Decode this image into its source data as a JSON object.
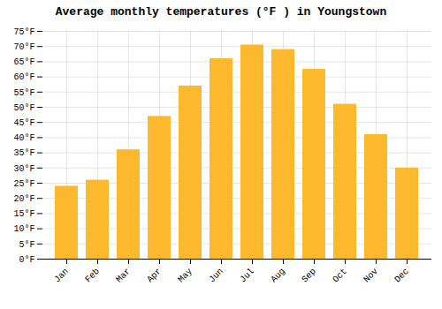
{
  "chart_data": {
    "type": "bar",
    "title": "Average monthly temperatures (°F ) in Youngstown",
    "categories": [
      "Jan",
      "Feb",
      "Mar",
      "Apr",
      "May",
      "Jun",
      "Jul",
      "Aug",
      "Sep",
      "Oct",
      "Nov",
      "Dec"
    ],
    "values": [
      24,
      26,
      36,
      47,
      57,
      66,
      70.5,
      69,
      62.5,
      51,
      41,
      30
    ],
    "color": "#FDB92E",
    "ylim": [
      0,
      75
    ],
    "yticks": [
      {
        "value": 0,
        "label": "0°F"
      },
      {
        "value": 5,
        "label": "5°F"
      },
      {
        "value": 10,
        "label": "10°F"
      },
      {
        "value": 15,
        "label": "15°F"
      },
      {
        "value": 20,
        "label": "20°F"
      },
      {
        "value": 25,
        "label": "25°F"
      },
      {
        "value": 30,
        "label": "30°F"
      },
      {
        "value": 35,
        "label": "35°F"
      },
      {
        "value": 40,
        "label": "40°F"
      },
      {
        "value": 45,
        "label": "45°F"
      },
      {
        "value": 50,
        "label": "50°F"
      },
      {
        "value": 55,
        "label": "55°F"
      },
      {
        "value": 60,
        "label": "60°F"
      },
      {
        "value": 65,
        "label": "65°F"
      },
      {
        "value": 70,
        "label": "70°F"
      },
      {
        "value": 75,
        "label": "75°F"
      }
    ],
    "grid": true
  }
}
